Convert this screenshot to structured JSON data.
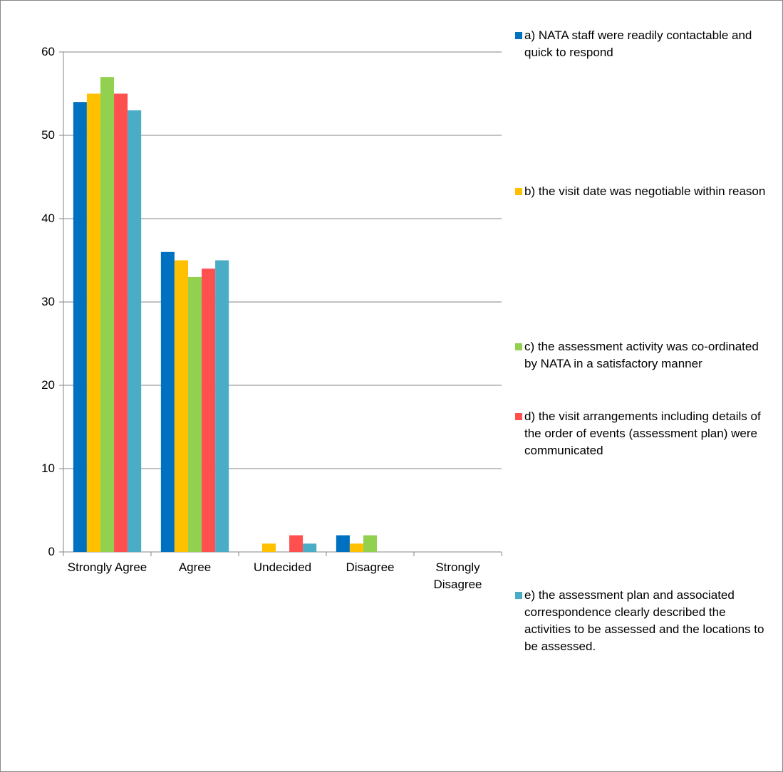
{
  "chart_data": {
    "type": "bar",
    "categories": [
      "Strongly Agree",
      "Agree",
      "Undecided",
      "Disagree",
      "Strongly Disagree"
    ],
    "series": [
      {
        "name": "a) NATA staff were readily contactable and quick to respond",
        "color": "#0070c0",
        "values": [
          54,
          36,
          0,
          2,
          0
        ]
      },
      {
        "name": "b) the visit date was negotiable within reason",
        "color": "#ffc000",
        "values": [
          55,
          35,
          1,
          1,
          0
        ]
      },
      {
        "name": "c) the assessment activity was co-ordinated by NATA in a satisfactory manner",
        "color": "#92d050",
        "values": [
          57,
          33,
          0,
          2,
          0
        ]
      },
      {
        "name": "d) the visit arrangements including details of the order of events (assessment plan) were communicated",
        "color": "#ff5050",
        "values": [
          55,
          34,
          2,
          0,
          0
        ]
      },
      {
        "name": "e) the assessment plan and associated correspondence clearly described the activities to be assessed and the locations to be assessed.",
        "color": "#4bacc6",
        "values": [
          53,
          35,
          1,
          0,
          0
        ]
      }
    ],
    "ylim": [
      0,
      60
    ],
    "yticks": [
      0,
      10,
      20,
      30,
      40,
      50,
      60
    ],
    "grid": true,
    "legend": "right"
  }
}
